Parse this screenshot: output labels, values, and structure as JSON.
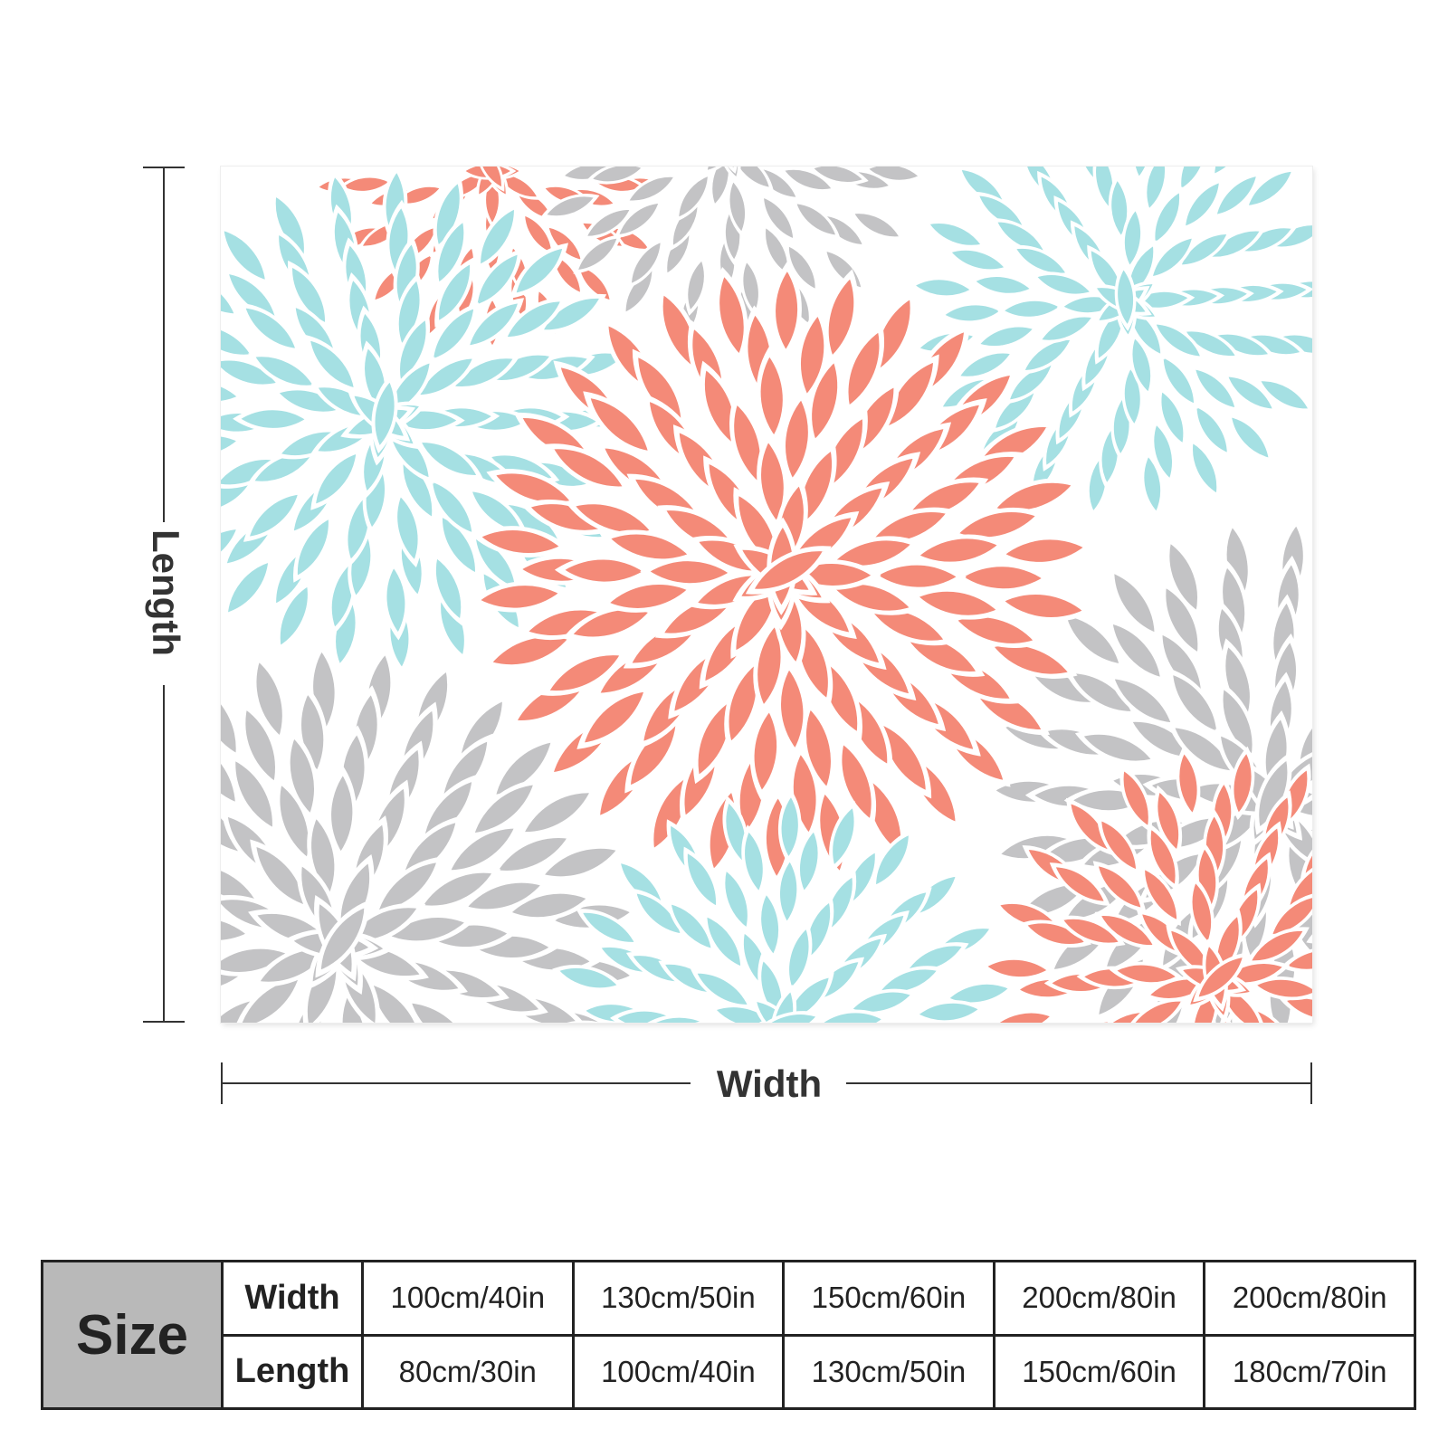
{
  "dimensions": {
    "length_label": "Length",
    "width_label": "Width"
  },
  "colors": {
    "coral": "#f48a78",
    "aqua": "#a5e0e3",
    "gray": "#c3c3c5",
    "background": "#ffffff"
  },
  "size_table": {
    "header": "Size",
    "width_label": "Width",
    "length_label": "Length",
    "widths": [
      "100cm/40in",
      "130cm/50in",
      "150cm/60in",
      "200cm/80in",
      "200cm/80in"
    ],
    "lengths": [
      "80cm/30in",
      "100cm/40in",
      "130cm/50in",
      "150cm/60in",
      "180cm/70in"
    ]
  }
}
